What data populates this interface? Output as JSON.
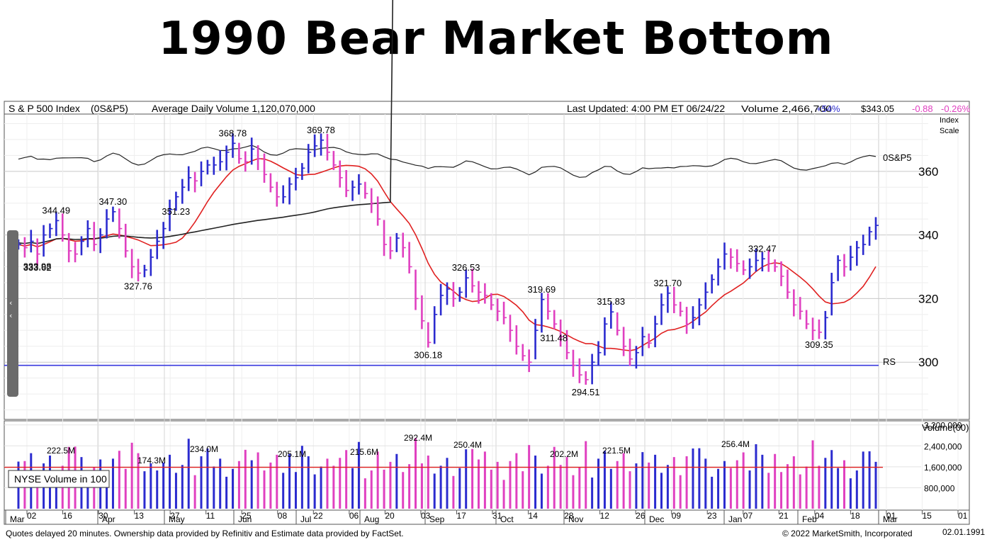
{
  "title": "1990 Bear Market Bottom",
  "header": {
    "symbol_name": "S & P 500 Index",
    "symbol": "(0S&P5)",
    "avg_volume": "Average Daily Volume 1,120,070,000",
    "last_updated": "Last Updated: 4:00 PM ET 06/24/22",
    "volume": "Volume 2,466,700",
    "volume_pct": "+54%",
    "price": "$343.05",
    "change": "-0.88",
    "change_pct": "-0.26%"
  },
  "colors": {
    "up": "#2b2bcf",
    "down": "#e040c0",
    "ma_red": "#e02020",
    "ma_black": "#222222",
    "rs_blue": "#3a3adf",
    "grid": "#d8d8d8"
  },
  "chart_data": {
    "type": "ohlc",
    "scale_label": [
      "Index",
      "Scale"
    ],
    "ylim": [
      282,
      378
    ],
    "yticks": [
      300,
      320,
      340,
      360
    ],
    "volume_ylabel": "Volume(00)",
    "volume_ylim": [
      0,
      3300000
    ],
    "volume_yticks": [
      "3,200,000",
      "2,400,000",
      "1,600,000",
      "800,000"
    ],
    "volume_legend": "NYSE Volume in 100",
    "x_date_labels": [
      "02",
      "16",
      "30",
      "13",
      "27",
      "11",
      "25",
      "08",
      "22",
      "06",
      "20",
      "03",
      "17",
      "31",
      "14",
      "28",
      "12",
      "26",
      "09",
      "23",
      "07",
      "21",
      "04",
      "18",
      "01",
      "15",
      "01"
    ],
    "months": [
      "Mar",
      "Apr",
      "May",
      "Jun",
      "Jul",
      "Aug",
      "Sep",
      "Oct",
      "Nov",
      "Dec",
      "Jan",
      "Feb",
      "Mar"
    ],
    "price_annotations": [
      {
        "value": "344.49",
        "price": 344.49
      },
      {
        "value": "333.62",
        "price": 333.62
      },
      {
        "value": "347.30",
        "price": 347.3
      },
      {
        "value": "327.76",
        "price": 327.76
      },
      {
        "value": "368.78",
        "price": 368.78
      },
      {
        "value": "351.23",
        "price": 351.23
      },
      {
        "value": "369.78",
        "price": 369.78
      },
      {
        "value": "306.18",
        "price": 306.18
      },
      {
        "value": "326.53",
        "price": 326.53
      },
      {
        "value": "319.69",
        "price": 319.69
      },
      {
        "value": "294.51",
        "price": 294.51
      },
      {
        "value": "315.83",
        "price": 315.83
      },
      {
        "value": "321.70",
        "price": 321.7
      },
      {
        "value": "311.48",
        "price": 311.48
      },
      {
        "value": "333.98",
        "price": 333.98
      },
      {
        "value": "332.47",
        "price": 332.47
      },
      {
        "value": "309.35",
        "price": 309.35
      }
    ],
    "volume_annotations": [
      "222.5M",
      "174.3M",
      "234.0M",
      "205.1M",
      "215.6M",
      "292.4M",
      "250.4M",
      "202.2M",
      "221.5M",
      "256.4M"
    ],
    "series_labels": {
      "index": "0S&P5",
      "rs": "RS"
    },
    "rs_value": 299,
    "price_path": [
      337,
      336,
      338,
      334,
      340,
      342,
      344.5,
      340,
      335,
      334,
      338,
      342,
      337,
      340,
      345,
      347.3,
      342,
      335,
      330,
      328,
      329,
      333,
      338,
      342,
      348,
      352,
      355,
      358,
      357,
      360,
      362,
      362,
      363,
      366,
      368.8,
      364,
      363,
      367,
      364,
      359,
      355,
      352,
      352,
      356,
      358,
      361,
      366,
      368,
      369.8,
      366,
      362,
      358,
      354,
      355,
      356,
      353,
      350,
      345,
      337,
      335,
      339,
      336,
      330,
      320,
      313,
      306.2,
      315,
      321,
      323,
      320,
      322,
      326.5,
      324,
      322,
      321,
      318,
      316,
      314,
      310,
      305,
      302,
      300,
      310,
      319.7,
      316,
      312,
      308,
      303,
      299,
      296,
      294.5,
      300,
      303,
      312,
      315.8,
      310,
      305,
      301,
      303,
      308,
      306,
      312,
      318,
      321.7,
      318,
      316,
      312,
      314,
      318,
      322,
      326,
      330,
      334,
      333,
      331,
      329,
      330,
      332,
      332.5,
      331,
      330,
      327,
      322,
      318,
      316,
      312,
      310,
      309.4,
      314,
      325,
      332,
      330,
      333,
      336,
      337,
      341,
      343
    ]
  },
  "footer": {
    "left": "Quotes delayed 20 minutes. Ownership data provided by Refinitiv and Estimate data provided by FactSet.",
    "right": "© 2022 MarketSmith, Incorporated",
    "date": "02.01.1991"
  }
}
